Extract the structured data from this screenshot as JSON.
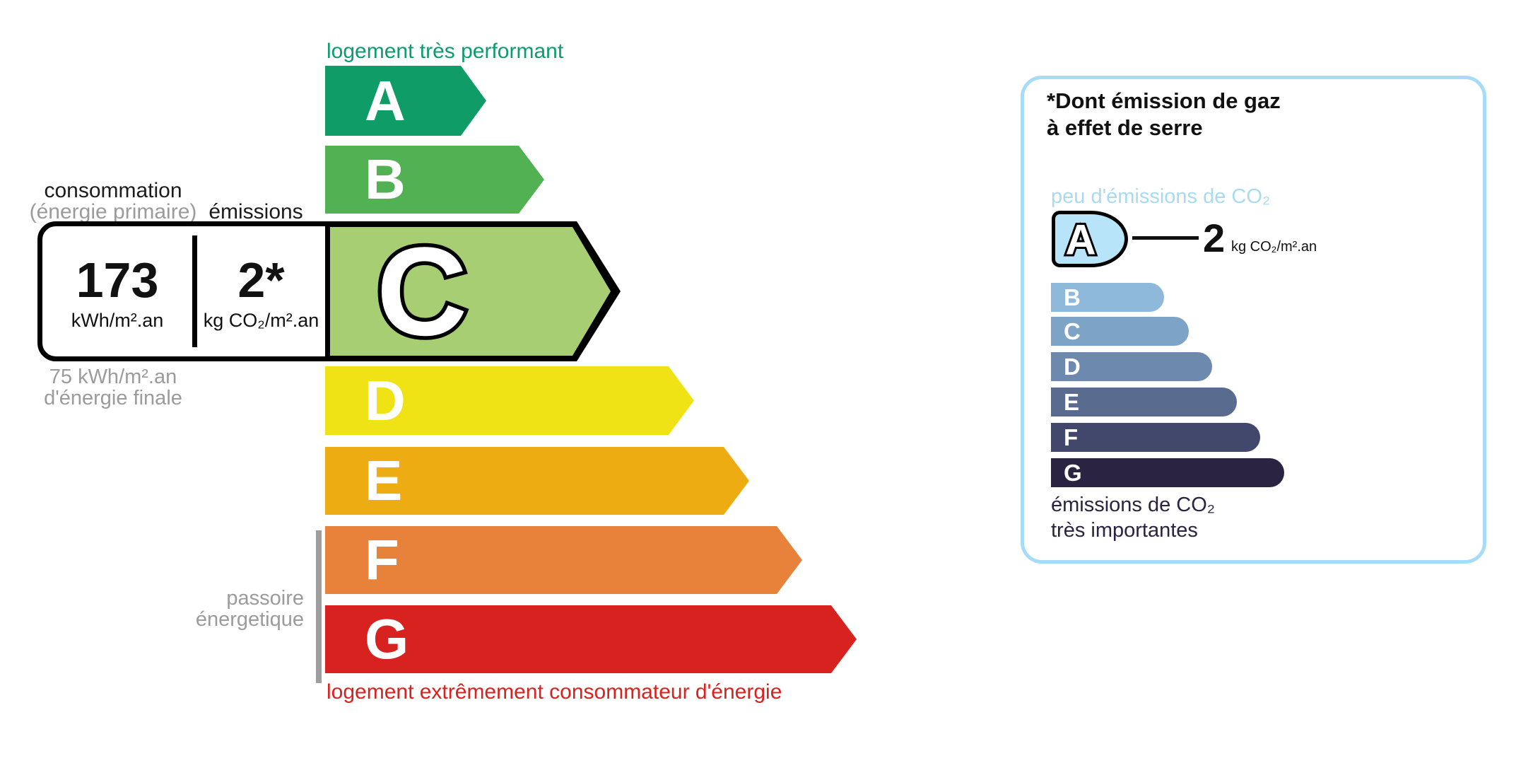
{
  "energy_scale": {
    "top_label": "logement très performant",
    "top_label_color": "#0d9c6b",
    "bottom_label": "logement extrêmement consommateur d'énergie",
    "bottom_label_color": "#d7221f",
    "selected_class": "C",
    "classes": [
      {
        "letter": "A",
        "color": "#109c67"
      },
      {
        "letter": "B",
        "color": "#52b153"
      },
      {
        "letter": "C",
        "color": "#a8ce74"
      },
      {
        "letter": "D",
        "color": "#f0e315"
      },
      {
        "letter": "E",
        "color": "#eeac13"
      },
      {
        "letter": "F",
        "color": "#e8823a"
      },
      {
        "letter": "G",
        "color": "#d7221f"
      }
    ],
    "header": {
      "consumption": "consommation",
      "consumption_sub": "(énergie primaire)",
      "emissions": "émissions"
    },
    "values": {
      "consumption": "173",
      "consumption_unit": "kWh/m².an",
      "emissions": "2*",
      "emissions_unit": "kg CO₂/m².an"
    },
    "final_energy_note": {
      "line1": "75 kWh/m².an",
      "line2": "d'énergie finale"
    },
    "sieve_label": {
      "line1": "passoire",
      "line2": "énergetique"
    }
  },
  "co2_panel": {
    "border_color": "#a6dcf7",
    "title_line1": "*Dont émission de gaz",
    "title_line2": "à effet de serre",
    "low_label": "peu d'émissions de CO₂",
    "low_label_color": "#a8dbf3",
    "value": "2",
    "value_unit": "kg CO₂/m².an",
    "high_label_line1": "émissions de CO₂",
    "high_label_line2": "très importantes",
    "high_label_color": "#2a2342",
    "classes": [
      {
        "letter": "A",
        "color": "#b7e4f9"
      },
      {
        "letter": "B",
        "color": "#8fb9da"
      },
      {
        "letter": "C",
        "color": "#7da3c6"
      },
      {
        "letter": "D",
        "color": "#6d89ad"
      },
      {
        "letter": "E",
        "color": "#5a6b90"
      },
      {
        "letter": "F",
        "color": "#42476c"
      },
      {
        "letter": "G",
        "color": "#2a2342"
      }
    ]
  }
}
